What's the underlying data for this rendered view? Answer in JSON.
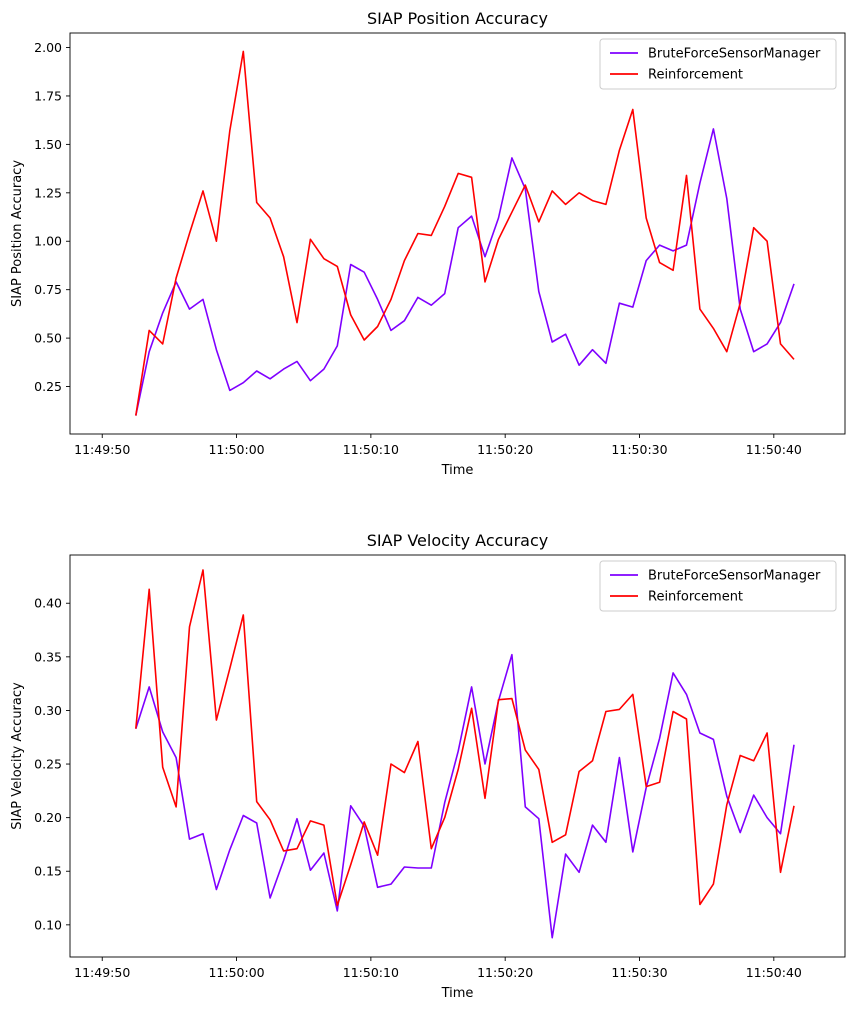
{
  "chart_data": [
    {
      "type": "line",
      "title": "SIAP Position Accuracy",
      "xlabel": "Time",
      "ylabel": "SIAP Position Accuracy",
      "x_ticks": [
        "11:49:50",
        "11:50:00",
        "11:50:10",
        "11:50:20",
        "11:50:30",
        "11:50:40"
      ],
      "x_tick_seconds": [
        -10,
        0,
        10,
        20,
        30,
        40
      ],
      "xlim_seconds": [
        -12.4,
        45.3
      ],
      "y_ticks": [
        "0.25",
        "0.50",
        "0.75",
        "1.00",
        "1.25",
        "1.50",
        "1.75",
        "2.00"
      ],
      "y_tick_values": [
        0.25,
        0.5,
        0.75,
        1.0,
        1.25,
        1.5,
        1.75,
        2.0
      ],
      "ylim": [
        0.005,
        2.075
      ],
      "legend_position": "top-right",
      "grid": false,
      "x_seconds": [
        -7.5,
        -6.5,
        -5.5,
        -4.5,
        -3.5,
        -2.5,
        -1.5,
        -0.5,
        0.5,
        1.5,
        2.5,
        3.5,
        4.5,
        5.5,
        6.5,
        7.5,
        8.5,
        9.5,
        10.5,
        11.5,
        12.5,
        13.5,
        14.5,
        15.5,
        16.5,
        17.5,
        18.5,
        19.5,
        20.5,
        21.5,
        22.5,
        23.5,
        24.5,
        25.5,
        26.5,
        27.5,
        28.5,
        29.5,
        30.5,
        31.5,
        32.5,
        33.5,
        34.5,
        35.5,
        36.5,
        37.5,
        38.5,
        39.5,
        40.5,
        41.5
      ],
      "series": [
        {
          "name": "BruteForceSensorManager",
          "color": "#7f00ff",
          "values": [
            0.1,
            0.43,
            0.63,
            0.79,
            0.65,
            0.7,
            0.44,
            0.23,
            0.27,
            0.33,
            0.29,
            0.34,
            0.38,
            0.28,
            0.34,
            0.46,
            0.88,
            0.84,
            0.7,
            0.54,
            0.59,
            0.71,
            0.67,
            0.73,
            1.07,
            1.13,
            0.92,
            1.12,
            1.43,
            1.27,
            0.74,
            0.48,
            0.52,
            0.36,
            0.44,
            0.37,
            0.68,
            0.66,
            0.9,
            0.98,
            0.95,
            0.98,
            1.3,
            1.58,
            1.22,
            0.65,
            0.43,
            0.47,
            0.58,
            0.78
          ]
        },
        {
          "name": "Reinforcement",
          "color": "#ff0000",
          "values": [
            0.1,
            0.54,
            0.47,
            0.81,
            1.04,
            1.26,
            1.0,
            1.57,
            1.98,
            1.2,
            1.12,
            0.92,
            0.58,
            1.01,
            0.91,
            0.87,
            0.62,
            0.49,
            0.56,
            0.7,
            0.9,
            1.04,
            1.03,
            1.18,
            1.35,
            1.33,
            0.79,
            1.01,
            1.15,
            1.29,
            1.1,
            1.26,
            1.19,
            1.25,
            1.21,
            1.19,
            1.47,
            1.68,
            1.12,
            0.89,
            0.85,
            1.34,
            0.65,
            0.55,
            0.43,
            0.68,
            1.07,
            1.0,
            0.47,
            0.39
          ]
        }
      ]
    },
    {
      "type": "line",
      "title": "SIAP Velocity Accuracy",
      "xlabel": "Time",
      "ylabel": "SIAP Velocity Accuracy",
      "x_ticks": [
        "11:49:50",
        "11:50:00",
        "11:50:10",
        "11:50:20",
        "11:50:30",
        "11:50:40"
      ],
      "x_tick_seconds": [
        -10,
        0,
        10,
        20,
        30,
        40
      ],
      "xlim_seconds": [
        -12.4,
        45.3
      ],
      "y_ticks": [
        "0.10",
        "0.15",
        "0.20",
        "0.25",
        "0.30",
        "0.35",
        "0.40"
      ],
      "y_tick_values": [
        0.1,
        0.15,
        0.2,
        0.25,
        0.3,
        0.35,
        0.4
      ],
      "ylim": [
        0.07,
        0.445
      ],
      "legend_position": "top-right",
      "grid": false,
      "x_seconds": [
        -7.5,
        -6.5,
        -5.5,
        -4.5,
        -3.5,
        -2.5,
        -1.5,
        -0.5,
        0.5,
        1.5,
        2.5,
        3.5,
        4.5,
        5.5,
        6.5,
        7.5,
        8.5,
        9.5,
        10.5,
        11.5,
        12.5,
        13.5,
        14.5,
        15.5,
        16.5,
        17.5,
        18.5,
        19.5,
        20.5,
        21.5,
        22.5,
        23.5,
        24.5,
        25.5,
        26.5,
        27.5,
        28.5,
        29.5,
        30.5,
        31.5,
        32.5,
        33.5,
        34.5,
        35.5,
        36.5,
        37.5,
        38.5,
        39.5,
        40.5,
        41.5
      ],
      "series": [
        {
          "name": "BruteForceSensorManager",
          "color": "#7f00ff",
          "values": [
            0.283,
            0.322,
            0.28,
            0.256,
            0.18,
            0.185,
            0.133,
            0.17,
            0.202,
            0.195,
            0.125,
            0.16,
            0.199,
            0.151,
            0.167,
            0.113,
            0.211,
            0.192,
            0.135,
            0.138,
            0.154,
            0.153,
            0.153,
            0.214,
            0.262,
            0.322,
            0.25,
            0.309,
            0.352,
            0.21,
            0.199,
            0.088,
            0.166,
            0.149,
            0.193,
            0.177,
            0.256,
            0.168,
            0.228,
            0.274,
            0.335,
            0.315,
            0.279,
            0.273,
            0.22,
            0.186,
            0.221,
            0.2,
            0.185,
            0.268
          ]
        },
        {
          "name": "Reinforcement",
          "color": "#ff0000",
          "values": [
            0.283,
            0.413,
            0.247,
            0.21,
            0.378,
            0.431,
            0.291,
            0.339,
            0.389,
            0.215,
            0.198,
            0.169,
            0.171,
            0.197,
            0.193,
            0.118,
            0.156,
            0.196,
            0.165,
            0.25,
            0.242,
            0.271,
            0.171,
            0.2,
            0.245,
            0.302,
            0.218,
            0.31,
            0.311,
            0.263,
            0.245,
            0.177,
            0.184,
            0.243,
            0.253,
            0.299,
            0.301,
            0.315,
            0.229,
            0.233,
            0.299,
            0.292,
            0.119,
            0.138,
            0.212,
            0.258,
            0.253,
            0.279,
            0.149,
            0.211
          ]
        }
      ]
    }
  ]
}
